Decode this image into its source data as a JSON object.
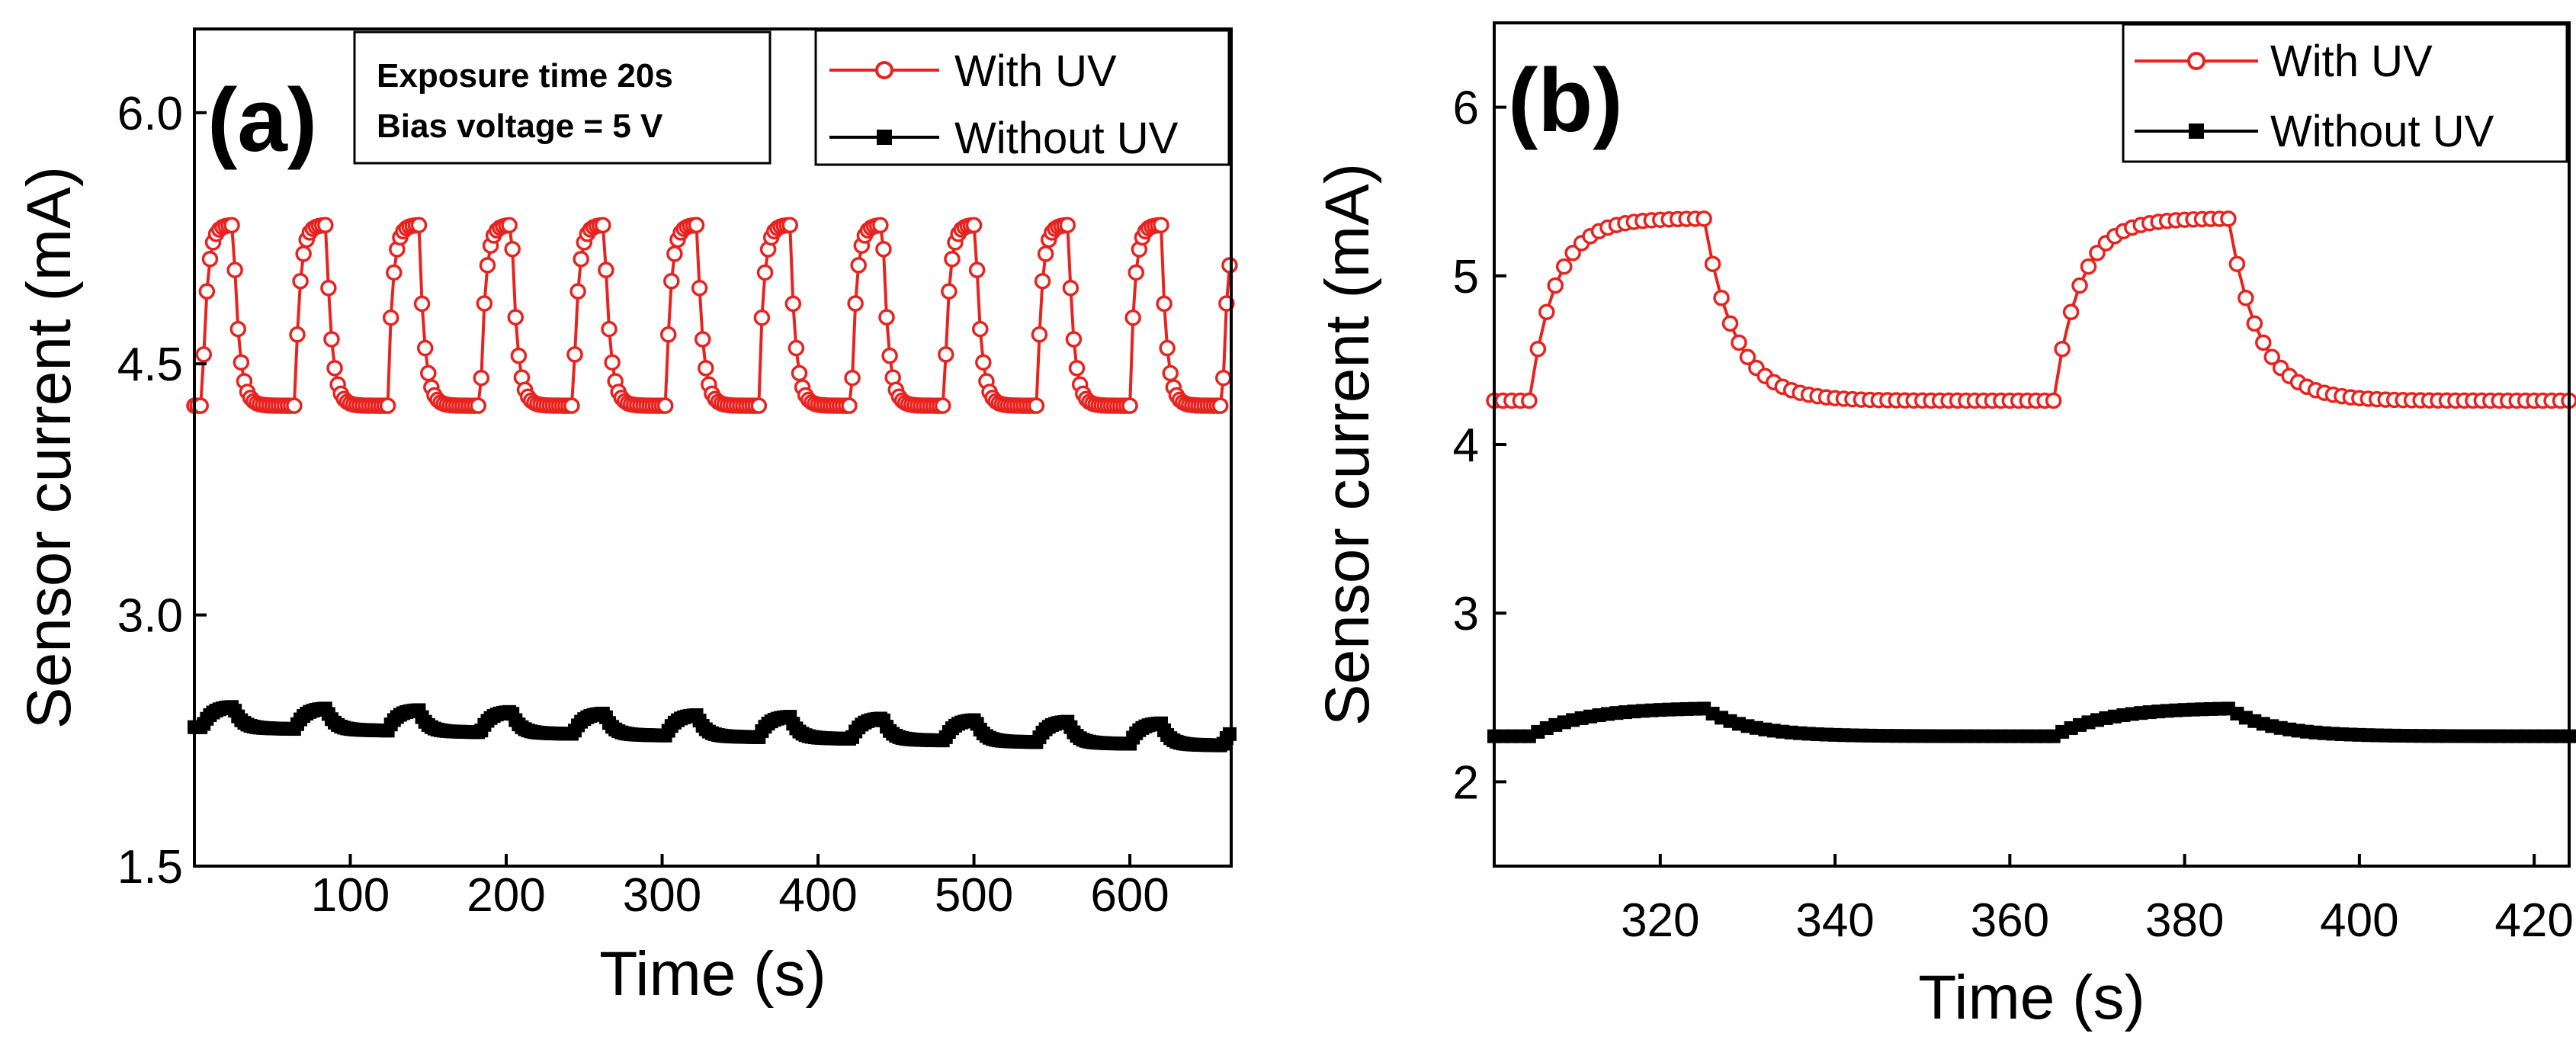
{
  "chart_data": [
    {
      "panel": "(a)",
      "type": "line",
      "title": "",
      "xlabel": "Time (s)",
      "ylabel": "Sensor current (mA)",
      "xlim": [
        0,
        665
      ],
      "ylim": [
        1.5,
        6.5
      ],
      "xticks": [
        100,
        200,
        300,
        400,
        500,
        600
      ],
      "yticks": [
        1.5,
        3.0,
        4.5,
        6.0
      ],
      "xtick_labels": [
        "100",
        "200",
        "300",
        "400",
        "500",
        "600"
      ],
      "ytick_labels": [
        "1.5",
        "3.0",
        "4.5",
        "6.0"
      ],
      "grid": false,
      "legend_position": "top-right",
      "annotation": [
        "Exposure time 20s",
        "Bias voltage = 5 V"
      ],
      "cycle": {
        "period_s": 59.5,
        "first_on_s": 5,
        "on_duration_s": 20,
        "sample_step_s": 2
      },
      "series": [
        {
          "name": "With UV",
          "color": "#e8231f",
          "marker": "open-circle",
          "baseline": 4.25,
          "peak": 5.33
        },
        {
          "name": "Without UV",
          "color": "#000000",
          "marker": "filled-square",
          "baseline": 2.33,
          "peak": 2.46,
          "baseline_end": 2.22
        }
      ]
    },
    {
      "panel": "(b)",
      "type": "line",
      "title": "",
      "xlabel": "Time (s)",
      "ylabel": "Sensor current (mA)",
      "xlim": [
        301,
        424
      ],
      "ylim": [
        1.5,
        6.5
      ],
      "xticks": [
        320,
        340,
        360,
        380,
        400,
        420
      ],
      "yticks": [
        2,
        3,
        4,
        5,
        6
      ],
      "xtick_labels": [
        "320",
        "340",
        "360",
        "380",
        "400",
        "420"
      ],
      "ytick_labels": [
        "2",
        "3",
        "4",
        "5",
        "6"
      ],
      "grid": false,
      "legend_position": "top-right",
      "cycle": {
        "on_intervals": [
          [
            305,
            325
          ],
          [
            365,
            385
          ]
        ],
        "sample_step_s": 1
      },
      "series": [
        {
          "name": "With UV",
          "color": "#e8231f",
          "marker": "open-circle",
          "baseline": 4.26,
          "peak": 5.34
        },
        {
          "name": "Without UV",
          "color": "#000000",
          "marker": "filled-square",
          "baseline": 2.27,
          "peak": 2.44
        }
      ]
    }
  ]
}
